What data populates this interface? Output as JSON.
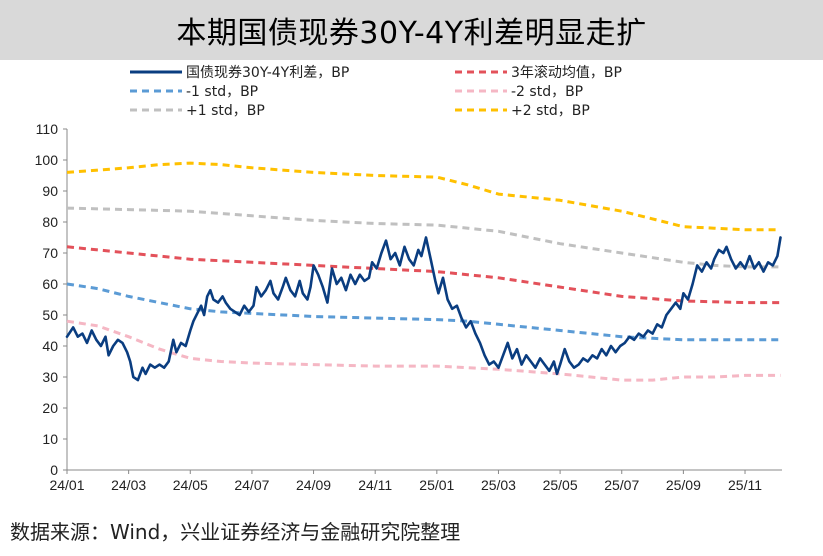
{
  "chart_data": {
    "type": "line",
    "title": "本期国债现券30Y-4Y利差明显走扩",
    "xlabel": "",
    "ylabel": "",
    "ylim": [
      0,
      110
    ],
    "yticks": [
      0,
      10,
      20,
      30,
      40,
      50,
      60,
      70,
      80,
      90,
      100,
      110
    ],
    "xlim": [
      0,
      23.2
    ],
    "xticks": [
      {
        "label": "24/01",
        "x": 0
      },
      {
        "label": "24/03",
        "x": 2
      },
      {
        "label": "24/05",
        "x": 4
      },
      {
        "label": "24/07",
        "x": 6
      },
      {
        "label": "24/09",
        "x": 8
      },
      {
        "label": "24/11",
        "x": 10
      },
      {
        "label": "25/01",
        "x": 12
      },
      {
        "label": "25/03",
        "x": 14
      },
      {
        "label": "25/05",
        "x": 16
      },
      {
        "label": "25/07",
        "x": 18
      },
      {
        "label": "25/09",
        "x": 20
      },
      {
        "label": "25/11",
        "x": 22
      }
    ],
    "grid": false,
    "legend_position": "top",
    "series": [
      {
        "name": "国债现券30Y-4Y利差，BP",
        "color": "#0a3d80",
        "style": "solid",
        "points": [
          [
            0,
            43
          ],
          [
            0.2,
            46
          ],
          [
            0.35,
            43
          ],
          [
            0.5,
            44
          ],
          [
            0.65,
            41
          ],
          [
            0.8,
            45
          ],
          [
            0.95,
            42
          ],
          [
            1.1,
            40
          ],
          [
            1.25,
            43
          ],
          [
            1.35,
            37
          ],
          [
            1.5,
            40
          ],
          [
            1.65,
            42
          ],
          [
            1.8,
            41
          ],
          [
            1.95,
            38
          ],
          [
            2.05,
            35
          ],
          [
            2.15,
            30
          ],
          [
            2.3,
            29
          ],
          [
            2.45,
            33
          ],
          [
            2.55,
            31
          ],
          [
            2.7,
            34
          ],
          [
            2.85,
            33
          ],
          [
            3.0,
            34
          ],
          [
            3.15,
            33
          ],
          [
            3.3,
            35
          ],
          [
            3.45,
            42
          ],
          [
            3.55,
            38
          ],
          [
            3.7,
            41
          ],
          [
            3.85,
            40
          ],
          [
            4.0,
            45
          ],
          [
            4.1,
            48
          ],
          [
            4.25,
            51
          ],
          [
            4.35,
            53
          ],
          [
            4.45,
            50
          ],
          [
            4.55,
            56
          ],
          [
            4.65,
            58
          ],
          [
            4.75,
            55
          ],
          [
            4.9,
            54
          ],
          [
            5.05,
            56
          ],
          [
            5.15,
            54
          ],
          [
            5.3,
            52
          ],
          [
            5.45,
            51
          ],
          [
            5.6,
            50
          ],
          [
            5.75,
            53
          ],
          [
            5.9,
            51
          ],
          [
            6.05,
            53
          ],
          [
            6.15,
            59
          ],
          [
            6.3,
            56
          ],
          [
            6.45,
            58
          ],
          [
            6.6,
            61
          ],
          [
            6.7,
            57
          ],
          [
            6.85,
            55
          ],
          [
            7.0,
            59
          ],
          [
            7.1,
            62
          ],
          [
            7.25,
            58
          ],
          [
            7.4,
            56
          ],
          [
            7.55,
            61
          ],
          [
            7.65,
            57
          ],
          [
            7.8,
            55
          ],
          [
            7.9,
            59
          ],
          [
            8.0,
            66
          ],
          [
            8.15,
            63
          ],
          [
            8.3,
            59
          ],
          [
            8.45,
            54
          ],
          [
            8.6,
            65
          ],
          [
            8.75,
            60
          ],
          [
            8.9,
            62
          ],
          [
            9.05,
            58
          ],
          [
            9.2,
            63
          ],
          [
            9.35,
            60
          ],
          [
            9.5,
            63
          ],
          [
            9.65,
            61
          ],
          [
            9.8,
            62
          ],
          [
            9.9,
            67
          ],
          [
            10.05,
            65
          ],
          [
            10.2,
            70
          ],
          [
            10.35,
            74
          ],
          [
            10.5,
            68
          ],
          [
            10.65,
            70
          ],
          [
            10.8,
            66
          ],
          [
            10.95,
            72
          ],
          [
            11.1,
            68
          ],
          [
            11.25,
            66
          ],
          [
            11.4,
            71
          ],
          [
            11.5,
            69
          ],
          [
            11.65,
            75
          ],
          [
            11.8,
            68
          ],
          [
            11.95,
            61
          ],
          [
            12.05,
            57
          ],
          [
            12.2,
            62
          ],
          [
            12.35,
            55
          ],
          [
            12.5,
            52
          ],
          [
            12.65,
            53
          ],
          [
            12.8,
            49
          ],
          [
            12.95,
            46
          ],
          [
            13.1,
            48
          ],
          [
            13.25,
            44
          ],
          [
            13.4,
            41
          ],
          [
            13.55,
            37
          ],
          [
            13.7,
            34
          ],
          [
            13.85,
            35
          ],
          [
            14.0,
            33
          ],
          [
            14.15,
            37
          ],
          [
            14.3,
            41
          ],
          [
            14.45,
            36
          ],
          [
            14.6,
            39
          ],
          [
            14.75,
            34
          ],
          [
            14.9,
            37
          ],
          [
            15.05,
            35
          ],
          [
            15.2,
            33
          ],
          [
            15.35,
            36
          ],
          [
            15.5,
            34
          ],
          [
            15.65,
            32
          ],
          [
            15.8,
            35
          ],
          [
            15.9,
            31
          ],
          [
            16.0,
            34
          ],
          [
            16.15,
            39
          ],
          [
            16.3,
            35
          ],
          [
            16.45,
            33
          ],
          [
            16.6,
            34
          ],
          [
            16.75,
            36
          ],
          [
            16.9,
            35
          ],
          [
            17.05,
            37
          ],
          [
            17.2,
            36
          ],
          [
            17.35,
            39
          ],
          [
            17.5,
            37
          ],
          [
            17.65,
            40
          ],
          [
            17.8,
            38
          ],
          [
            17.95,
            40
          ],
          [
            18.1,
            41
          ],
          [
            18.25,
            43
          ],
          [
            18.4,
            42
          ],
          [
            18.55,
            44
          ],
          [
            18.7,
            43
          ],
          [
            18.85,
            45
          ],
          [
            19.0,
            44
          ],
          [
            19.15,
            47
          ],
          [
            19.3,
            46
          ],
          [
            19.45,
            50
          ],
          [
            19.6,
            52
          ],
          [
            19.75,
            54
          ],
          [
            19.9,
            52
          ],
          [
            20.0,
            57
          ],
          [
            20.15,
            55
          ],
          [
            20.3,
            60
          ],
          [
            20.45,
            66
          ],
          [
            20.6,
            64
          ],
          [
            20.75,
            67
          ],
          [
            20.9,
            65
          ],
          [
            21.0,
            68
          ],
          [
            21.15,
            71
          ],
          [
            21.3,
            70
          ],
          [
            21.4,
            72
          ],
          [
            21.55,
            68
          ],
          [
            21.7,
            65
          ],
          [
            21.85,
            67
          ],
          [
            22.0,
            65
          ],
          [
            22.15,
            69
          ],
          [
            22.3,
            65
          ],
          [
            22.45,
            67
          ],
          [
            22.6,
            64
          ],
          [
            22.75,
            67
          ],
          [
            22.9,
            66
          ],
          [
            23.05,
            69
          ],
          [
            23.15,
            75
          ]
        ]
      },
      {
        "name": "3年滚动均值，BP",
        "color": "#e3515a",
        "style": "dashed",
        "points": [
          [
            0,
            72
          ],
          [
            2,
            70
          ],
          [
            4,
            68
          ],
          [
            6,
            67
          ],
          [
            8,
            66
          ],
          [
            10,
            65
          ],
          [
            12,
            64
          ],
          [
            14,
            62
          ],
          [
            16,
            59
          ],
          [
            18,
            56
          ],
          [
            20,
            54.5
          ],
          [
            22,
            54
          ],
          [
            23.15,
            54
          ]
        ]
      },
      {
        "name": "-1 std，BP",
        "color": "#5b9bd5",
        "style": "dashed",
        "points": [
          [
            0,
            60
          ],
          [
            1,
            58.5
          ],
          [
            2,
            56
          ],
          [
            3,
            54
          ],
          [
            4,
            52
          ],
          [
            5,
            51
          ],
          [
            6,
            50.5
          ],
          [
            8,
            49.5
          ],
          [
            10,
            49
          ],
          [
            12,
            48.5
          ],
          [
            13,
            48
          ],
          [
            14,
            47
          ],
          [
            16,
            45
          ],
          [
            18,
            43
          ],
          [
            19,
            42.5
          ],
          [
            20,
            42
          ],
          [
            22,
            42
          ],
          [
            23.15,
            42
          ]
        ]
      },
      {
        "name": "-2 std，BP",
        "color": "#f5b7c4",
        "style": "dashed",
        "points": [
          [
            0,
            48
          ],
          [
            1,
            46.5
          ],
          [
            2,
            43
          ],
          [
            3,
            39
          ],
          [
            4,
            36
          ],
          [
            5,
            35
          ],
          [
            6,
            34.5
          ],
          [
            8,
            34
          ],
          [
            10,
            33.5
          ],
          [
            12,
            33.5
          ],
          [
            14,
            32.5
          ],
          [
            16,
            31
          ],
          [
            17,
            30
          ],
          [
            18,
            29
          ],
          [
            19,
            29
          ],
          [
            20,
            30
          ],
          [
            21,
            30
          ],
          [
            22,
            30.5
          ],
          [
            23.15,
            30.5
          ]
        ]
      },
      {
        "name": "+1 std，BP",
        "color": "#c0c0c0",
        "style": "dashed",
        "points": [
          [
            0,
            84.5
          ],
          [
            2,
            84
          ],
          [
            4,
            83.5
          ],
          [
            6,
            82
          ],
          [
            8,
            80.5
          ],
          [
            10,
            79.5
          ],
          [
            12,
            79
          ],
          [
            14,
            77
          ],
          [
            16,
            73
          ],
          [
            18,
            70
          ],
          [
            20,
            67
          ],
          [
            21,
            66
          ],
          [
            22,
            65.5
          ],
          [
            23.15,
            65.5
          ]
        ]
      },
      {
        "name": "+2 std，BP",
        "color": "#ffc000",
        "style": "dashed",
        "points": [
          [
            0,
            96
          ],
          [
            2,
            97.5
          ],
          [
            3,
            98.5
          ],
          [
            4,
            99
          ],
          [
            5,
            98.5
          ],
          [
            6,
            97.5
          ],
          [
            8,
            96
          ],
          [
            10,
            95
          ],
          [
            12,
            94.5
          ],
          [
            13,
            92
          ],
          [
            14,
            89
          ],
          [
            16,
            87
          ],
          [
            18,
            83.5
          ],
          [
            19,
            81
          ],
          [
            20,
            78.5
          ],
          [
            21,
            78
          ],
          [
            22,
            77.5
          ],
          [
            23.15,
            77.5
          ]
        ]
      }
    ]
  },
  "source_note": "数据来源：Wind，兴业证券经济与金融研究院整理"
}
